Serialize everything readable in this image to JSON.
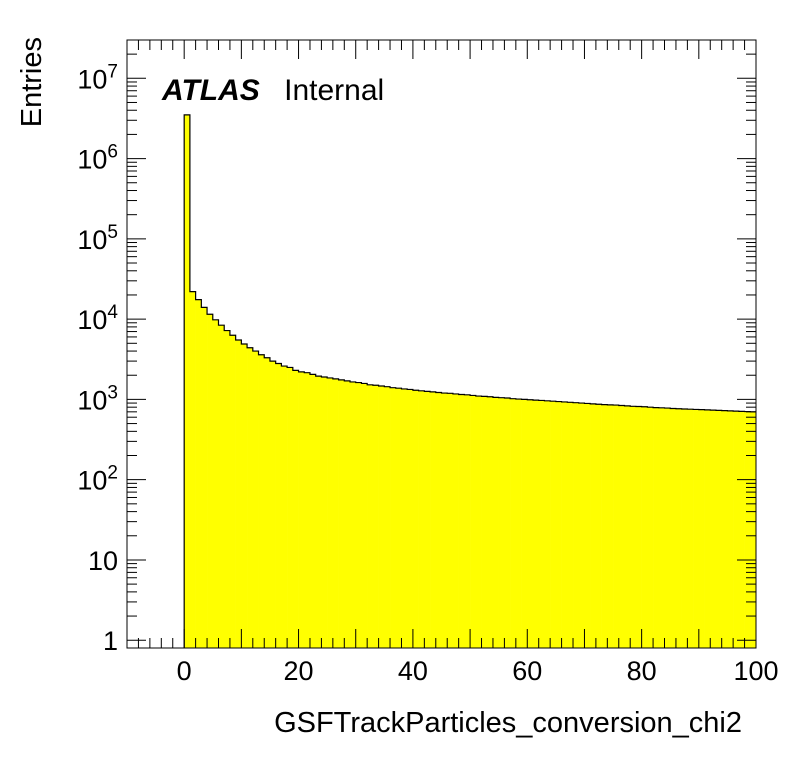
{
  "chart_data": {
    "type": "bar",
    "style": "histogram",
    "title": "",
    "xlabel": "GSFTrackParticles_conversion_chi2",
    "ylabel": "Entries",
    "xlim": [
      -10,
      100
    ],
    "ylim": [
      0.8,
      30000000
    ],
    "yscale": "log",
    "grid": false,
    "fill_color": "#ffff00",
    "line_color": "#000000",
    "x_ticks": [
      {
        "value": 0,
        "label": "0"
      },
      {
        "value": 20,
        "label": "20"
      },
      {
        "value": 40,
        "label": "40"
      },
      {
        "value": 60,
        "label": "60"
      },
      {
        "value": 80,
        "label": "80"
      },
      {
        "value": 100,
        "label": "100"
      }
    ],
    "y_ticks": [
      {
        "value": 1,
        "base": "1",
        "exp": ""
      },
      {
        "value": 10,
        "base": "10",
        "exp": ""
      },
      {
        "value": 100,
        "base": "10",
        "exp": "2"
      },
      {
        "value": 1000,
        "base": "10",
        "exp": "3"
      },
      {
        "value": 10000,
        "base": "10",
        "exp": "4"
      },
      {
        "value": 100000,
        "base": "10",
        "exp": "5"
      },
      {
        "value": 1000000,
        "base": "10",
        "exp": "6"
      },
      {
        "value": 10000000,
        "base": "10",
        "exp": "7"
      }
    ],
    "bin_width": 1,
    "bin_start": 0,
    "values": [
      3500000,
      22000,
      17500,
      14000,
      11500,
      9800,
      8400,
      7200,
      6300,
      5500,
      4900,
      4400,
      4000,
      3600,
      3300,
      3000,
      2800,
      2600,
      2500,
      2300,
      2200,
      2150,
      2050,
      1950,
      1900,
      1850,
      1800,
      1750,
      1700,
      1650,
      1620,
      1580,
      1520,
      1500,
      1470,
      1440,
      1400,
      1380,
      1350,
      1330,
      1300,
      1280,
      1260,
      1240,
      1220,
      1200,
      1190,
      1170,
      1150,
      1140,
      1120,
      1100,
      1090,
      1080,
      1060,
      1050,
      1040,
      1020,
      1010,
      1000,
      990,
      980,
      970,
      960,
      950,
      940,
      930,
      920,
      910,
      900,
      890,
      880,
      870,
      860,
      855,
      850,
      840,
      830,
      820,
      815,
      810,
      800,
      790,
      785,
      780,
      770,
      765,
      760,
      755,
      750,
      745,
      740,
      735,
      730,
      725,
      720,
      715,
      710,
      705,
      700
    ],
    "annotations": [
      {
        "text_bold": "ATLAS",
        "text": "Internal"
      }
    ]
  }
}
